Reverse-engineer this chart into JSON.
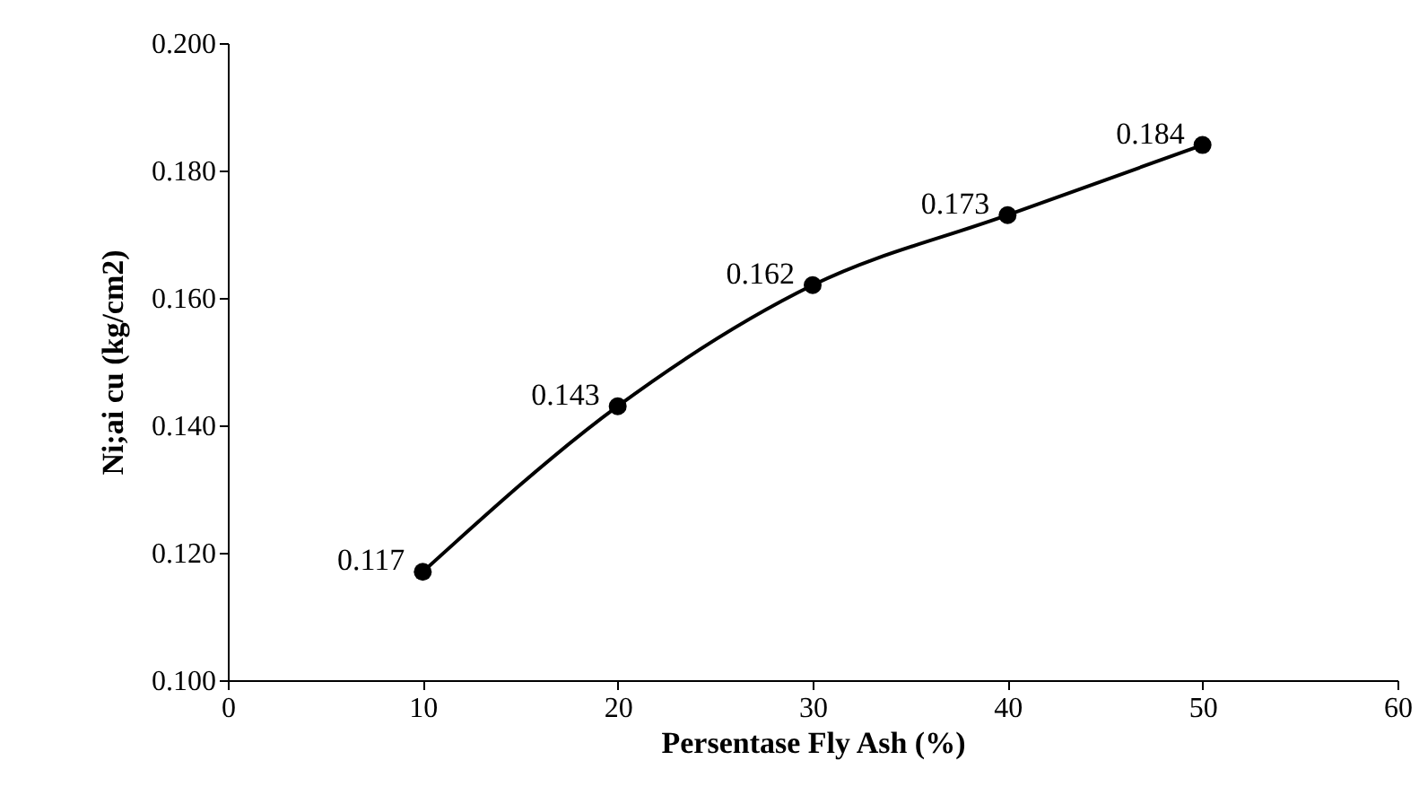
{
  "chart_data": {
    "type": "line",
    "xlabel": "Persentase Fly Ash (%)",
    "ylabel": "Ni;ai cu (kg/cm2)",
    "x": [
      10,
      20,
      30,
      40,
      50
    ],
    "series": [
      {
        "color": "#000000",
        "values": [
          0.117,
          0.143,
          0.162,
          0.173,
          0.184
        ]
      }
    ],
    "xlim": [
      0,
      60
    ],
    "xticks": [
      0,
      10,
      20,
      30,
      40,
      50,
      60
    ],
    "ylim": [
      0.1,
      0.2
    ],
    "yticks": [
      {
        "value": 0.1,
        "label": "0.100"
      },
      {
        "value": 0.12,
        "label": "0.120"
      },
      {
        "value": 0.14,
        "label": "0.140"
      },
      {
        "value": 0.16,
        "label": "0.160"
      },
      {
        "value": 0.18,
        "label": "0.180"
      },
      {
        "value": 0.2,
        "label": "0.200"
      }
    ],
    "marker": "circle",
    "line_style": "solid",
    "data_labels": true
  }
}
